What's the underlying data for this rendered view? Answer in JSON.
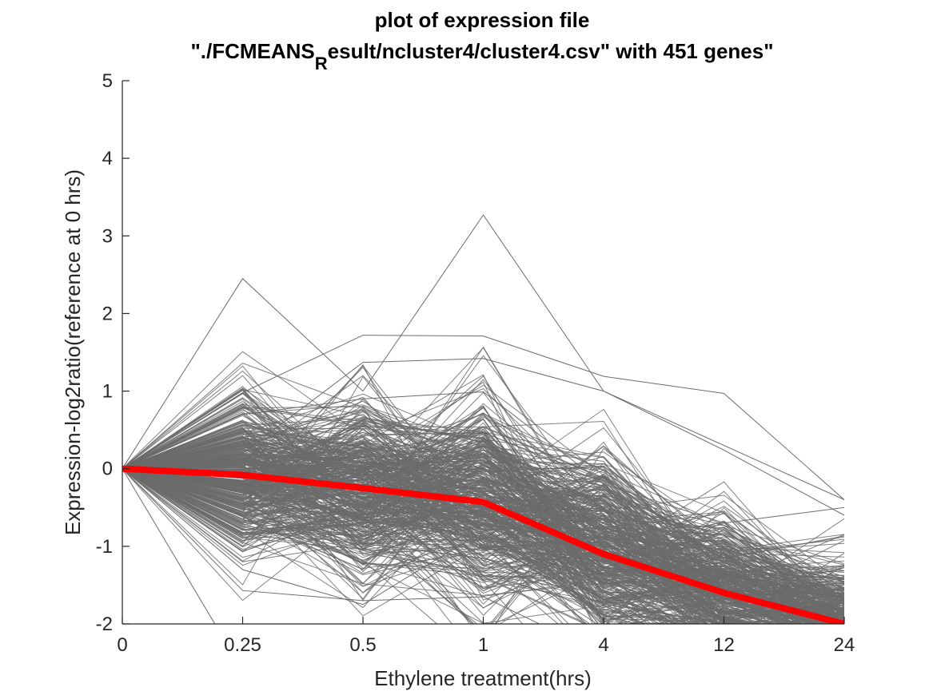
{
  "chart_data": {
    "type": "line",
    "title_line1": "plot of expression file",
    "title_line2_prefix": "\"./FCMEANS",
    "title_line2_subscript": "R",
    "title_line2_suffix": "esult/ncluster4/cluster4.csv\" with 451 genes\"",
    "xlabel": "Ethylene treatment(hrs)",
    "ylabel": "Expression-log2ratio(reference at 0 hrs)",
    "categories": [
      "0",
      "0.25",
      "0.5",
      "1",
      "4",
      "12",
      "24"
    ],
    "y_ticks": [
      "-2",
      "-1",
      "0",
      "1",
      "2",
      "3",
      "4",
      "5"
    ],
    "ylim": [
      -2,
      5
    ],
    "gene_count": 451,
    "gene_line_color": "#6b6b6b",
    "mean_line_color": "#ff0000",
    "series": [
      {
        "values": [
          0,
          -0.08,
          -0.25,
          -0.43,
          -1.1,
          -1.6,
          -2.0
        ]
      },
      {
        "values": [
          0,
          2.45,
          1.0,
          3.27,
          1.0,
          0.3,
          -0.4
        ]
      },
      {
        "values": [
          0,
          0.98,
          1.72,
          1.71,
          1.19,
          0.97,
          -0.4
        ]
      },
      {
        "values": [
          0,
          0.2,
          1.37,
          1.42,
          1.0,
          0.24,
          -0.6
        ]
      },
      {
        "values": [
          0,
          -1.57,
          -1.7,
          -1.65,
          -2.4,
          -2.5,
          -2.6
        ]
      },
      {
        "values": [
          0,
          -1.3,
          -1.75,
          -0.8,
          -1.9,
          -1.95,
          -1.7
        ]
      },
      {
        "values": [
          0,
          -2.6,
          -2.5,
          -2.4,
          -2.6,
          -2.5,
          -2.4
        ]
      },
      {
        "values": [
          0,
          0.7,
          0.9,
          0.99,
          -0.2,
          -0.7,
          -0.5
        ]
      }
    ]
  }
}
